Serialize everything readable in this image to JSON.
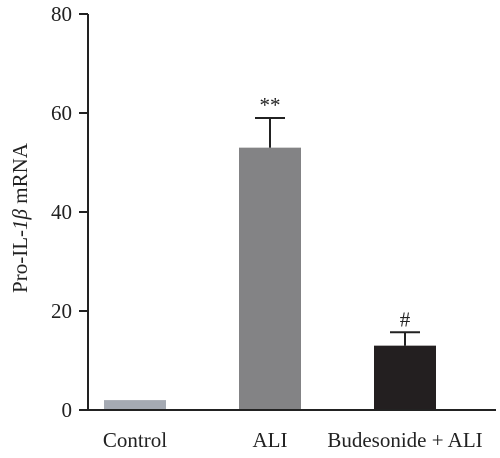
{
  "chart_data": {
    "type": "bar",
    "categories": [
      "Control",
      "ALI",
      "Budesonide + ALI"
    ],
    "values": [
      2,
      53,
      13
    ],
    "errors": [
      0,
      6,
      2.7
    ],
    "annotations": [
      "",
      "**",
      "#"
    ],
    "colors": [
      "#a5aab3",
      "#838385",
      "#231f20"
    ],
    "ylabel_parts": [
      "Pro-IL-",
      "1β",
      " mRNA"
    ],
    "ylim": [
      0,
      80
    ],
    "yticks": [
      "0",
      "20",
      "40",
      "60",
      "80"
    ]
  }
}
